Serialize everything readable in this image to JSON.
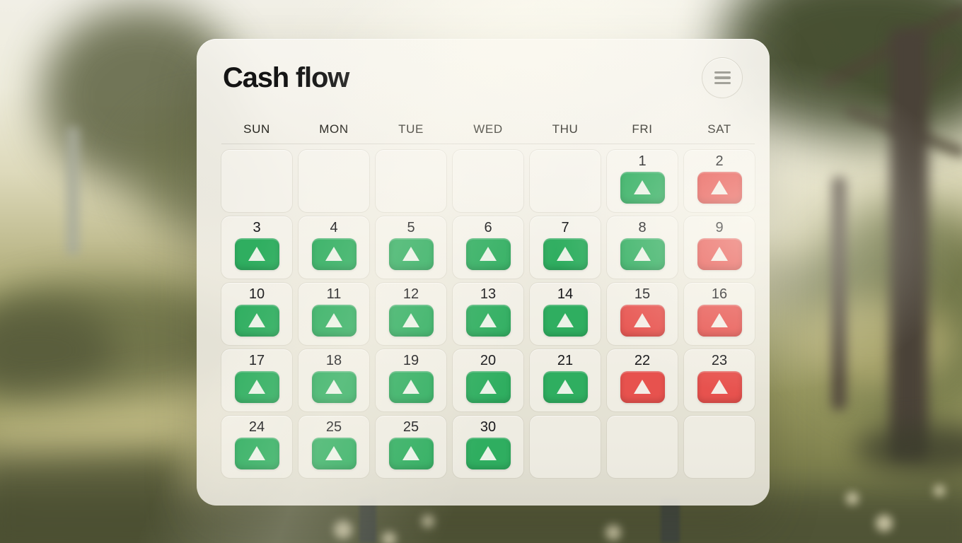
{
  "header": {
    "title": "Cash flow",
    "menu_button": {
      "icon": "hamburger-menu-icon"
    }
  },
  "calendar": {
    "day_headers": [
      "SUN",
      "MON",
      "TUE",
      "WED",
      "THU",
      "FRI",
      "SAT"
    ],
    "weeks": [
      [
        null,
        null,
        null,
        null,
        null,
        {
          "day": "1",
          "trend": "positive",
          "indicator": "up-triangle"
        },
        {
          "day": "2",
          "trend": "negative",
          "indicator": "up-triangle"
        }
      ],
      [
        {
          "day": "3",
          "trend": "positive",
          "indicator": "up-triangle"
        },
        {
          "day": "4",
          "trend": "positive",
          "indicator": "up-triangle"
        },
        {
          "day": "5",
          "trend": "positive",
          "indicator": "up-triangle"
        },
        {
          "day": "6",
          "trend": "positive",
          "indicator": "up-triangle"
        },
        {
          "day": "7",
          "trend": "positive",
          "indicator": "up-triangle"
        },
        {
          "day": "8",
          "trend": "positive",
          "indicator": "up-triangle"
        },
        {
          "day": "9",
          "trend": "negative",
          "indicator": "up-triangle"
        }
      ],
      [
        {
          "day": "10",
          "trend": "positive",
          "indicator": "up-triangle"
        },
        {
          "day": "11",
          "trend": "positive",
          "indicator": "up-triangle"
        },
        {
          "day": "12",
          "trend": "positive",
          "indicator": "up-triangle"
        },
        {
          "day": "13",
          "trend": "positive",
          "indicator": "up-triangle"
        },
        {
          "day": "14",
          "trend": "positive",
          "indicator": "up-triangle"
        },
        {
          "day": "15",
          "trend": "negative",
          "indicator": "up-triangle"
        },
        {
          "day": "16",
          "trend": "negative",
          "indicator": "up-triangle"
        }
      ],
      [
        {
          "day": "17",
          "trend": "positive",
          "indicator": "up-triangle"
        },
        {
          "day": "18",
          "trend": "positive",
          "indicator": "up-triangle"
        },
        {
          "day": "19",
          "trend": "positive",
          "indicator": "up-triangle"
        },
        {
          "day": "20",
          "trend": "positive",
          "indicator": "up-triangle"
        },
        {
          "day": "21",
          "trend": "positive",
          "indicator": "up-triangle"
        },
        {
          "day": "22",
          "trend": "negative",
          "indicator": "up-triangle"
        },
        {
          "day": "23",
          "trend": "negative",
          "indicator": "up-triangle"
        }
      ],
      [
        {
          "day": "24",
          "trend": "positive",
          "indicator": "up-triangle"
        },
        {
          "day": "25",
          "trend": "positive",
          "indicator": "up-triangle"
        },
        {
          "day": "25",
          "trend": "positive",
          "indicator": "up-triangle"
        },
        {
          "day": "30",
          "trend": "positive",
          "indicator": "up-triangle"
        },
        null,
        null,
        null
      ]
    ]
  },
  "colors": {
    "positive": "#2fae60",
    "negative": "#e7524e",
    "indicator": "#f4f6ee"
  }
}
